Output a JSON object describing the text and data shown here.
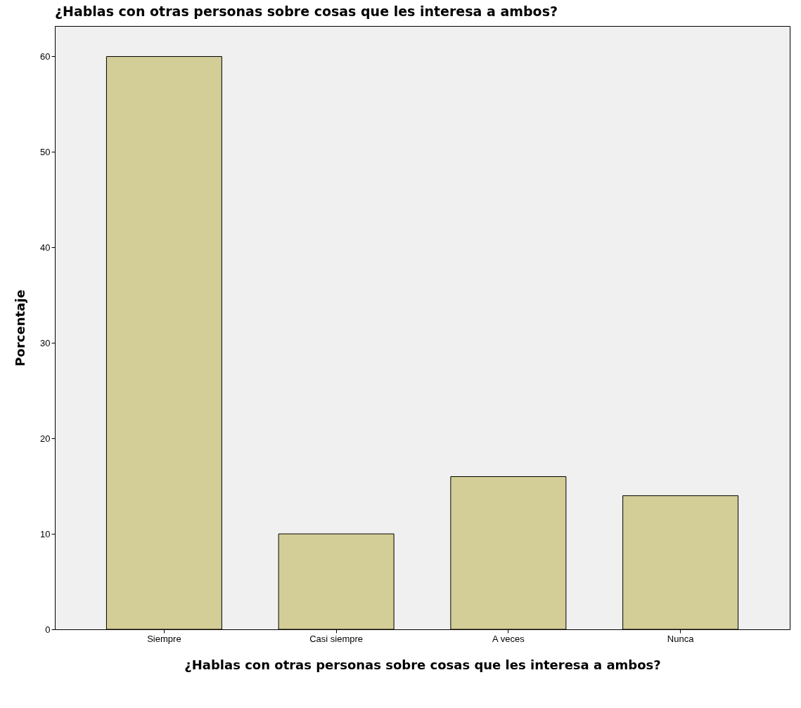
{
  "chart_data": {
    "type": "bar",
    "title": "¿Hablas con otras personas sobre cosas que les interesa a ambos?",
    "xlabel": "¿Hablas con otras personas sobre cosas que les interesa a ambos?",
    "ylabel": "Porcentaje",
    "categories": [
      "Siempre",
      "Casi siempre",
      "A veces",
      "Nunca"
    ],
    "values": [
      60,
      10,
      16,
      14
    ],
    "color": "#d3cd97",
    "ylim": [
      0,
      63.2
    ],
    "yticks": [
      0,
      10,
      20,
      30,
      40,
      50,
      60
    ]
  }
}
